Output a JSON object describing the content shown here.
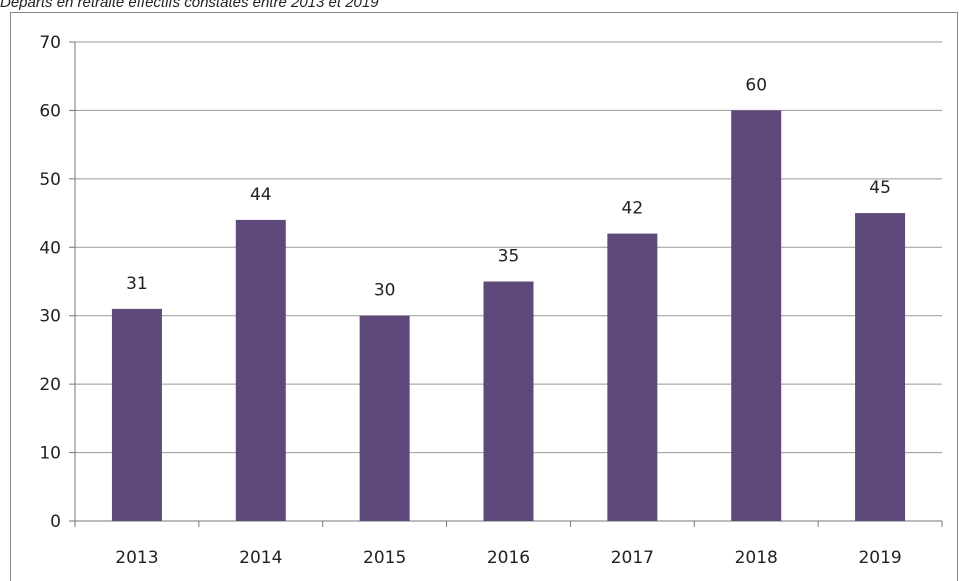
{
  "chart_data": {
    "type": "bar",
    "title": "Départs en retraite effectifs constatés entre 2013 et 2019",
    "categories": [
      "2013",
      "2014",
      "2015",
      "2016",
      "2017",
      "2018",
      "2019"
    ],
    "values": [
      31,
      44,
      30,
      35,
      42,
      60,
      45
    ],
    "color": "#5f497a",
    "ylim": [
      0,
      70
    ],
    "yticks": [
      0,
      10,
      20,
      30,
      40,
      50,
      60,
      70
    ],
    "grid": true,
    "data_labels": true
  }
}
